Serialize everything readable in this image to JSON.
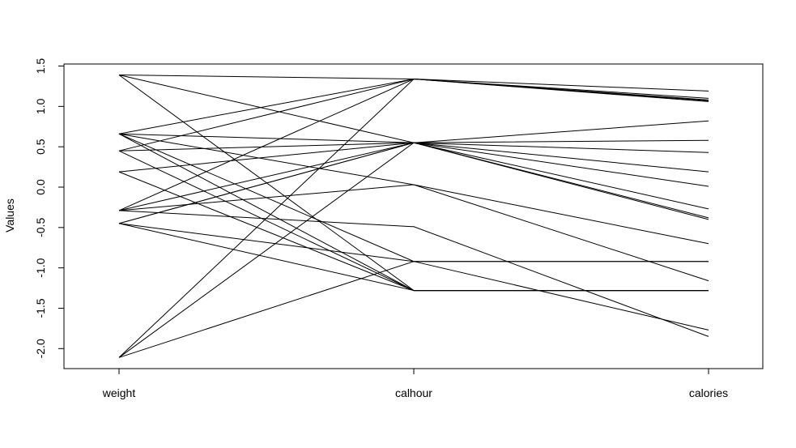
{
  "chart_data": {
    "type": "line",
    "subtype": "parallel-coordinates",
    "title": "",
    "xlabel": "",
    "ylabel": "Values",
    "categories": [
      "weight",
      "calhour",
      "calories"
    ],
    "ylim": [
      -2.25,
      1.5
    ],
    "yticks": [
      -2.0,
      -1.5,
      -1.0,
      -0.5,
      0.0,
      0.5,
      1.0,
      1.5
    ],
    "ytick_labels": [
      "-2.0",
      "-1.5",
      "-1.0",
      "-0.5",
      "0.0",
      "0.5",
      "1.0",
      "1.5"
    ],
    "grid": false,
    "line_color": "#000000",
    "series": [
      {
        "values": [
          1.39,
          1.34,
          1.19
        ]
      },
      {
        "values": [
          1.39,
          0.55,
          0.82
        ]
      },
      {
        "values": [
          1.39,
          -1.28,
          -1.28
        ]
      },
      {
        "values": [
          0.66,
          1.34,
          1.1
        ]
      },
      {
        "values": [
          0.66,
          0.55,
          0.58
        ]
      },
      {
        "values": [
          0.66,
          0.03,
          -0.7
        ]
      },
      {
        "values": [
          0.66,
          -0.92,
          -0.92
        ]
      },
      {
        "values": [
          0.66,
          -1.28,
          -1.28
        ]
      },
      {
        "values": [
          0.45,
          1.34,
          1.08
        ]
      },
      {
        "values": [
          0.45,
          0.55,
          0.43
        ]
      },
      {
        "values": [
          0.45,
          -1.28,
          -1.28
        ]
      },
      {
        "values": [
          0.19,
          0.55,
          0.19
        ]
      },
      {
        "values": [
          0.19,
          -1.28,
          -1.28
        ]
      },
      {
        "values": [
          -0.29,
          1.34,
          1.06
        ]
      },
      {
        "values": [
          -0.29,
          0.55,
          0.01
        ]
      },
      {
        "values": [
          -0.29,
          0.03,
          -1.16
        ]
      },
      {
        "values": [
          -0.29,
          -0.49,
          -1.85
        ]
      },
      {
        "values": [
          -0.45,
          0.55,
          -0.27
        ]
      },
      {
        "values": [
          -0.45,
          0.55,
          -0.38
        ]
      },
      {
        "values": [
          -0.45,
          -0.92,
          -1.77
        ]
      },
      {
        "values": [
          -0.45,
          -1.28,
          -1.28
        ]
      },
      {
        "values": [
          -2.11,
          1.34,
          1.07
        ]
      },
      {
        "values": [
          -2.11,
          0.55,
          -0.4
        ]
      },
      {
        "values": [
          -2.11,
          -0.92,
          -0.92
        ]
      }
    ]
  }
}
